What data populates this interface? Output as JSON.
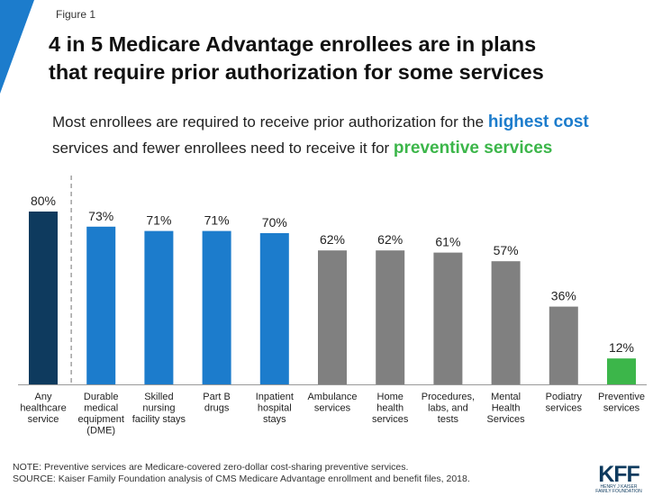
{
  "header": {
    "figure_label": "Figure 1",
    "title_line1": "4 in 5 Medicare Advantage enrollees are in plans",
    "title_line2": "that require prior authorization for some services"
  },
  "subtitle": {
    "part1": "Most enrollees are required to receive prior authorization for the ",
    "highlight1": "highest cost",
    "part2": "services and fewer enrollees need to receive it for ",
    "highlight2": "preventive services"
  },
  "chart_data": {
    "type": "bar",
    "categories": [
      [
        "Any",
        "healthcare",
        "service"
      ],
      [
        "Durable",
        "medical",
        "equipment",
        "(DME)"
      ],
      [
        "Skilled",
        "nursing",
        "facility stays"
      ],
      [
        "Part B",
        "drugs"
      ],
      [
        "Inpatient",
        "hospital",
        "stays"
      ],
      [
        "Ambulance",
        "services"
      ],
      [
        "Home",
        "health",
        "services"
      ],
      [
        "Procedures,",
        "labs, and",
        "tests"
      ],
      [
        "Mental",
        "Health",
        "Services"
      ],
      [
        "Podiatry",
        "services"
      ],
      [
        "Preventive",
        "services"
      ]
    ],
    "values": [
      80,
      73,
      71,
      71,
      70,
      62,
      62,
      61,
      57,
      36,
      12
    ],
    "value_labels": [
      "80%",
      "73%",
      "71%",
      "71%",
      "70%",
      "62%",
      "62%",
      "61%",
      "57%",
      "36%",
      "12%"
    ],
    "colors": [
      "#0e3a5e",
      "#1c7ccc",
      "#1c7ccc",
      "#1c7ccc",
      "#1c7ccc",
      "#808080",
      "#808080",
      "#808080",
      "#808080",
      "#808080",
      "#3cb64a"
    ],
    "ylim": [
      0,
      100
    ],
    "grid": false,
    "separator_after_index": 0
  },
  "footer": {
    "note": "NOTE: Preventive services are Medicare-covered zero-dollar cost-sharing preventive services.",
    "source": "SOURCE: Kaiser Family Foundation analysis of CMS Medicare Advantage enrollment and benefit files, 2018."
  },
  "logo": {
    "text": "KFF",
    "tag_line1": "HENRY J KAISER",
    "tag_line2": "FAMILY FOUNDATION"
  },
  "colors": {
    "accent_blue": "#1c7ccc",
    "dark_navy": "#0e3a5e",
    "gray": "#808080",
    "green": "#3cb64a"
  }
}
